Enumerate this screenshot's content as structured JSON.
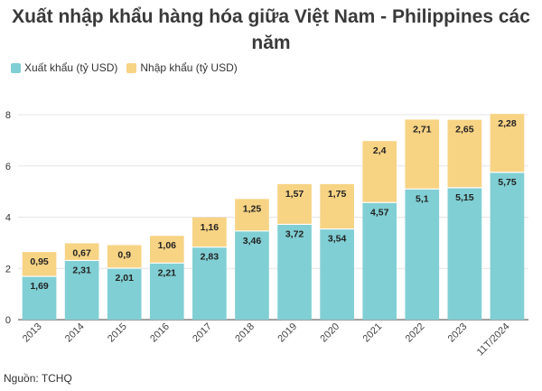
{
  "title": "Xuất nhập khẩu hàng hóa giữa Việt Nam - Philippines các\nnăm",
  "source": "Nguồn: TCHQ",
  "colors": {
    "export": "#80cfd4",
    "import": "#f7d384",
    "grid": "#e4e4e4",
    "axis": "#444444"
  },
  "chart_data": {
    "type": "bar",
    "stacked": true,
    "title": "Xuất nhập khẩu hàng hóa giữa Việt Nam - Philippines các\nnăm",
    "xlabel": "",
    "ylabel": "",
    "categories": [
      "2013",
      "2014",
      "2015",
      "2016",
      "2017",
      "2018",
      "2019",
      "2020",
      "2021",
      "2022",
      "2023",
      "11T/2024"
    ],
    "series": [
      {
        "name": "Xuất khẩu (tỷ USD)",
        "values": [
          1.69,
          2.31,
          2.01,
          2.21,
          2.83,
          3.46,
          3.72,
          3.54,
          4.57,
          5.1,
          5.15,
          5.75
        ],
        "labels": [
          "1,69",
          "2,31",
          "2,01",
          "2,21",
          "2,83",
          "3,46",
          "3,72",
          "3,54",
          "4,57",
          "5,1",
          "5,15",
          "5,75"
        ]
      },
      {
        "name": "Nhập khẩu (tỷ USD)",
        "values": [
          0.95,
          0.67,
          0.9,
          1.06,
          1.16,
          1.25,
          1.57,
          1.75,
          2.4,
          2.71,
          2.65,
          2.28
        ],
        "labels": [
          "0,95",
          "0,67",
          "0,9",
          "1,06",
          "1,16",
          "1,25",
          "1,57",
          "1,75",
          "2,4",
          "2,71",
          "2,65",
          "2,28"
        ]
      }
    ],
    "ylim": [
      0,
      8
    ],
    "yticks": [
      0,
      2,
      4,
      6,
      8
    ],
    "grid": true,
    "legend_position": "top-left"
  }
}
